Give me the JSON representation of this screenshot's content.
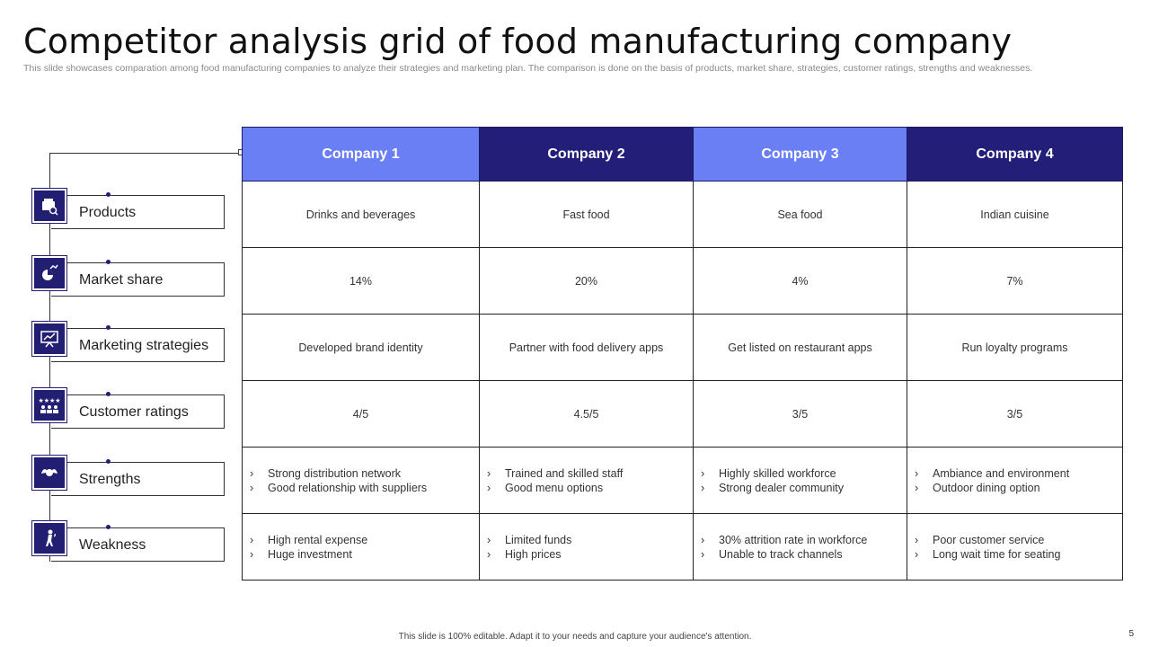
{
  "title": "Competitor analysis grid of food manufacturing company",
  "subtitle": "This slide showcases comparation among food manufacturing companies to analyze their strategies and marketing plan. The comparison is done on the basis of products, market share, strategies, customer ratings, strengths and weaknesses.",
  "colors": {
    "accent_dark": "#231f78",
    "accent_light": "#6b7ff4"
  },
  "companies": [
    "Company 1",
    "Company 2",
    "Company 3",
    "Company 4"
  ],
  "categories": [
    {
      "label": "Products",
      "icon": "food-box-icon"
    },
    {
      "label": "Market share",
      "icon": "market-share-icon"
    },
    {
      "label": "Marketing strategies",
      "icon": "presentation-board-icon"
    },
    {
      "label": "Customer ratings",
      "icon": "rating-stars-icon"
    },
    {
      "label": "Strengths",
      "icon": "strength-arm-icon"
    },
    {
      "label": "Weakness",
      "icon": "weak-person-icon"
    }
  ],
  "rows": {
    "products": [
      "Drinks and beverages",
      "Fast food",
      "Sea food",
      "Indian  cuisine"
    ],
    "market_share": [
      "14%",
      "20%",
      "4%",
      "7%"
    ],
    "marketing_strategies": [
      "Developed  brand identity",
      "Partner with food delivery  apps",
      "Get listed on restaurant apps",
      "Run loyalty programs"
    ],
    "customer_ratings": [
      "4/5",
      "4.5/5",
      "3/5",
      "3/5"
    ],
    "strengths": [
      [
        "Strong distribution network",
        "Good relationship with suppliers"
      ],
      [
        "Trained  and skilled staff",
        "Good menu options"
      ],
      [
        "Highly skilled workforce",
        "Strong dealer community"
      ],
      [
        "Ambiance and environment",
        "Outdoor dining option"
      ]
    ],
    "weakness": [
      [
        "High rental expense",
        "Huge investment"
      ],
      [
        "Limited funds",
        "High prices"
      ],
      [
        "30% attrition rate in workforce",
        "Unable  to track channels"
      ],
      [
        "Poor customer service",
        "Long wait time for seating"
      ]
    ]
  },
  "bullet_glyph": "›",
  "footer": "This slide is 100% editable.  Adapt it to your needs and capture your audience's attention.",
  "page_number": "5"
}
